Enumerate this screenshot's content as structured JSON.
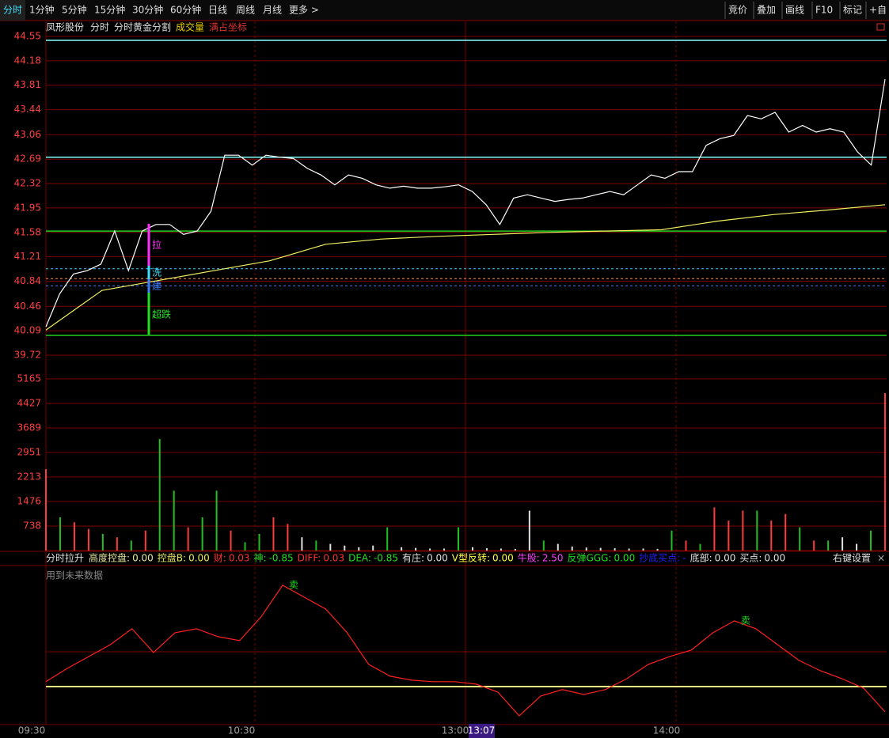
{
  "toolbar": {
    "left": [
      "分时",
      "1分钟",
      "5分钟",
      "15分钟",
      "30分钟",
      "60分钟",
      "日线",
      "周线",
      "月线",
      "更多 >"
    ],
    "right": [
      "竞价",
      "叠加",
      "画线",
      "F10",
      "标记",
      "+自"
    ]
  },
  "chart_header": {
    "stock": "凤形股份",
    "items": [
      {
        "text": "分时",
        "color": "#e0e0e0"
      },
      {
        "text": "分时黄金分割",
        "color": "#e0e0e0"
      },
      {
        "text": "成交量",
        "color": "#e8d000"
      },
      {
        "text": "满占坐标",
        "color": "#e03030"
      }
    ]
  },
  "price_axis": {
    "ticks": [
      44.55,
      44.18,
      43.81,
      43.44,
      43.06,
      42.69,
      42.32,
      41.95,
      41.58,
      41.21,
      40.84,
      40.46,
      40.09,
      39.72
    ]
  },
  "volume_axis": {
    "ticks": [
      5165,
      4427,
      3689,
      2951,
      2213,
      1476,
      738
    ]
  },
  "price": [
    40.15,
    40.65,
    40.95,
    41.0,
    41.1,
    41.6,
    41.0,
    41.6,
    41.7,
    41.7,
    41.55,
    41.6,
    41.9,
    42.75,
    42.75,
    42.6,
    42.75,
    42.72,
    42.7,
    42.55,
    42.45,
    42.3,
    42.45,
    42.4,
    42.3,
    42.25,
    42.28,
    42.25,
    42.25,
    42.27,
    42.3,
    42.2,
    42.0,
    41.7,
    42.1,
    42.15,
    42.1,
    42.05,
    42.08,
    42.1,
    42.15,
    42.2,
    42.15,
    42.3,
    42.45,
    42.4,
    42.5,
    42.5,
    42.9,
    43.0,
    43.05,
    43.35,
    43.3,
    43.4,
    43.1,
    43.2,
    43.1,
    43.15,
    43.1,
    42.8,
    42.6,
    43.9
  ],
  "average": [
    40.1,
    40.7,
    40.85,
    41.0,
    41.15,
    41.4,
    41.48,
    41.52,
    41.55,
    41.58,
    41.6,
    41.62,
    41.75,
    41.85,
    41.92,
    42.0
  ],
  "levels": [
    {
      "value": 44.49,
      "color": "#80ffff",
      "style": "solid"
    },
    {
      "value": 42.72,
      "color": "#80ffff",
      "style": "solid"
    },
    {
      "value": 41.6,
      "color": "#20d020",
      "style": "solid"
    },
    {
      "value": 40.02,
      "color": "#20d020",
      "style": "solid"
    },
    {
      "value": 41.03,
      "color": "#40c8ff",
      "style": "dashed"
    },
    {
      "value": 40.88,
      "color": "#ff9040",
      "style": "dashed"
    },
    {
      "value": 40.77,
      "color": "#4080ff",
      "style": "dashed"
    }
  ],
  "signals": [
    {
      "text": "拉",
      "color": "#ff30ff"
    },
    {
      "text": "洗",
      "color": "#40e0ff"
    },
    {
      "text": "建",
      "color": "#4080ff"
    },
    {
      "text": "超跌",
      "color": "#20e020"
    }
  ],
  "volume": [
    {
      "value": 2450,
      "color": "#ff3c3c"
    },
    {
      "value": 1000,
      "color": "#20c020"
    },
    {
      "value": 850,
      "color": "#ff3c3c"
    },
    {
      "value": 650,
      "color": "#ff3c3c"
    },
    {
      "value": 500,
      "color": "#20c020"
    },
    {
      "value": 400,
      "color": "#ff3c3c"
    },
    {
      "value": 300,
      "color": "#20c020"
    },
    {
      "value": 600,
      "color": "#ff3c3c"
    },
    {
      "value": 3356,
      "color": "#20c020"
    },
    {
      "value": 1800,
      "color": "#20c020"
    },
    {
      "value": 700,
      "color": "#ff3c3c"
    },
    {
      "value": 1000,
      "color": "#20c020"
    },
    {
      "value": 1800,
      "color": "#20c020"
    },
    {
      "value": 600,
      "color": "#ff3c3c"
    },
    {
      "value": 250,
      "color": "#20c020"
    },
    {
      "value": 500,
      "color": "#20c020"
    },
    {
      "value": 1000,
      "color": "#ff3c3c"
    },
    {
      "value": 800,
      "color": "#ff3c3c"
    },
    {
      "value": 400,
      "color": "#e0e0e0"
    },
    {
      "value": 300,
      "color": "#20c020"
    },
    {
      "value": 200,
      "color": "#e0e0e0"
    },
    {
      "value": 150,
      "color": "#e0e0e0"
    },
    {
      "value": 100,
      "color": "#e0e0e0"
    },
    {
      "value": 150,
      "color": "#e0e0e0"
    },
    {
      "value": 700,
      "color": "#20c020"
    },
    {
      "value": 100,
      "color": "#e0e0e0"
    },
    {
      "value": 80,
      "color": "#e0e0e0"
    },
    {
      "value": 60,
      "color": "#e0e0e0"
    },
    {
      "value": 60,
      "color": "#e0e0e0"
    },
    {
      "value": 700,
      "color": "#20c020"
    },
    {
      "value": 100,
      "color": "#e0e0e0"
    },
    {
      "value": 70,
      "color": "#e0e0e0"
    },
    {
      "value": 60,
      "color": "#e0e0e0"
    },
    {
      "value": 50,
      "color": "#e0e0e0"
    },
    {
      "value": 1200,
      "color": "#e0e0e0"
    },
    {
      "value": 300,
      "color": "#20c020"
    },
    {
      "value": 200,
      "color": "#e0e0e0"
    },
    {
      "value": 120,
      "color": "#e0e0e0"
    },
    {
      "value": 90,
      "color": "#e0e0e0"
    },
    {
      "value": 80,
      "color": "#e0e0e0"
    },
    {
      "value": 70,
      "color": "#e0e0e0"
    },
    {
      "value": 60,
      "color": "#e0e0e0"
    },
    {
      "value": 60,
      "color": "#e0e0e0"
    },
    {
      "value": 50,
      "color": "#e0e0e0"
    },
    {
      "value": 600,
      "color": "#20c020"
    },
    {
      "value": 300,
      "color": "#ff3c3c"
    },
    {
      "value": 200,
      "color": "#20c020"
    },
    {
      "value": 1300,
      "color": "#ff3c3c"
    },
    {
      "value": 900,
      "color": "#ff3c3c"
    },
    {
      "value": 1200,
      "color": "#ff3c3c"
    },
    {
      "value": 1200,
      "color": "#20c020"
    },
    {
      "value": 900,
      "color": "#ff3c3c"
    },
    {
      "value": 1100,
      "color": "#ff3c3c"
    },
    {
      "value": 700,
      "color": "#20c020"
    },
    {
      "value": 300,
      "color": "#ff3c3c"
    },
    {
      "value": 300,
      "color": "#20c020"
    },
    {
      "value": 400,
      "color": "#e0e0e0"
    },
    {
      "value": 200,
      "color": "#e0e0e0"
    },
    {
      "value": 600,
      "color": "#20c020"
    },
    {
      "value": 4737,
      "color": "#ff3c3c"
    }
  ],
  "indicator": {
    "name": "分时拉升",
    "items": [
      {
        "label": "高度控盘:",
        "value": "0.00",
        "color": "#e8e8a0"
      },
      {
        "label": "控盘B:",
        "value": "0.00",
        "color": "#e8e860"
      },
      {
        "label": "财:",
        "value": "0.03",
        "color": "#ff3030"
      },
      {
        "label": "神:",
        "value": "-0.85",
        "color": "#20e020"
      },
      {
        "label": "DIFF:",
        "value": "0.03",
        "color": "#ff3030"
      },
      {
        "label": "DEA:",
        "value": "-0.85",
        "color": "#20e020"
      },
      {
        "label": "有庄:",
        "value": "0.00",
        "color": "#e0e0e0"
      },
      {
        "label": "V型反转:",
        "value": "0.00",
        "color": "#ffff40"
      },
      {
        "label": "牛股:",
        "value": "2.50",
        "color": "#ff40ff"
      },
      {
        "label": "反弹GGG:",
        "value": "0.00",
        "color": "#20e020"
      },
      {
        "label": "抄底买点:",
        "value": "-",
        "color": "#2020ff"
      },
      {
        "label": "底部:",
        "value": "0.00",
        "color": "#e0e0e0"
      },
      {
        "label": "买点:",
        "value": "0.00",
        "color": "#e0e0e0"
      }
    ],
    "settings": "右键设置",
    "close": "×",
    "note": "用到未来数据",
    "sell_label": "卖",
    "ylim": [
      -0.8,
      2.4
    ],
    "line": [
      0.1,
      0.37,
      0.61,
      0.85,
      1.17,
      0.69,
      1.09,
      1.17,
      1.01,
      0.93,
      1.41,
      2.05,
      1.81,
      1.57,
      1.09,
      0.45,
      0.21,
      0.13,
      0.1,
      0.1,
      0.05,
      -0.11,
      -0.59,
      -0.19,
      -0.06,
      -0.16,
      -0.06,
      0.16,
      0.45,
      0.61,
      0.74,
      1.09,
      1.33,
      1.17,
      0.85,
      0.53,
      0.32,
      0.16,
      -0.03,
      -0.51
    ]
  },
  "time_axis": {
    "labels": [
      "09:30",
      "10:30",
      "13:00",
      "14:00"
    ],
    "cursor": "13:07"
  }
}
